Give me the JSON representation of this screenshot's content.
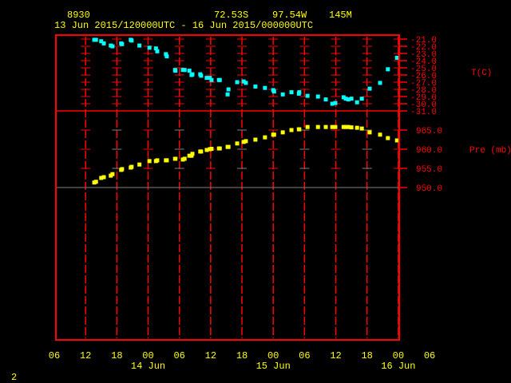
{
  "header": {
    "station_id": "8930",
    "latitude": "72.53S",
    "longitude": "97.54W",
    "elevation": "145M",
    "period": "13 Jun 2015/120000UTC - 16 Jun 2015/000000UTC"
  },
  "footer": {
    "page_number": "2"
  },
  "colors": {
    "frame": "#ff0000",
    "temperature": "#00ffff",
    "pressure": "#ffff00",
    "text": "#ffff00",
    "axis_text": "#ff0000",
    "grid_minor": "#808080"
  },
  "chart_data": [
    {
      "type": "scatter",
      "ylabel": "T(C)",
      "ylim": [
        -31.0,
        -21.0
      ],
      "yticks": [
        "-21.0",
        "-22.0",
        "-23.0",
        "-24.0",
        "-25.0",
        "-26.0",
        "-27.0",
        "-28.0",
        "-29.0",
        "-30.0",
        "-31.0"
      ],
      "x": [
        "2015-06-13T13:40",
        "2015-06-13T14:00",
        "2015-06-13T15:00",
        "2015-06-13T15:30",
        "2015-06-13T16:50",
        "2015-06-13T17:10",
        "2015-06-13T18:50",
        "2015-06-13T19:00",
        "2015-06-13T20:40",
        "2015-06-13T20:50",
        "2015-06-13T22:20",
        "2015-06-14T00:15",
        "2015-06-14T01:30",
        "2015-06-14T01:45",
        "2015-06-14T03:25",
        "2015-06-14T03:35",
        "2015-06-14T05:10",
        "2015-06-14T05:15",
        "2015-06-14T06:40",
        "2015-06-14T07:00",
        "2015-06-14T07:55",
        "2015-06-14T08:20",
        "2015-06-14T08:30",
        "2015-06-14T10:00",
        "2015-06-14T10:10",
        "2015-06-14T11:15",
        "2015-06-14T11:50",
        "2015-06-14T12:10",
        "2015-06-14T13:35",
        "2015-06-14T13:45",
        "2015-06-14T15:15",
        "2015-06-14T15:25",
        "2015-06-14T17:05",
        "2015-06-14T18:20",
        "2015-06-14T18:45",
        "2015-06-14T20:35",
        "2015-06-14T22:25",
        "2015-06-15T00:00",
        "2015-06-15T00:10",
        "2015-06-15T01:50",
        "2015-06-15T03:30",
        "2015-06-15T04:55",
        "2015-06-15T05:00",
        "2015-06-15T06:35",
        "2015-06-15T08:35",
        "2015-06-15T10:05",
        "2015-06-15T11:20",
        "2015-06-15T11:55",
        "2015-06-15T13:30",
        "2015-06-15T13:55",
        "2015-06-15T14:25",
        "2015-06-15T15:00",
        "2015-06-15T16:05",
        "2015-06-15T17:00",
        "2015-06-15T18:30",
        "2015-06-15T20:30",
        "2015-06-15T22:00",
        "2015-06-15T23:45"
      ],
      "values": [
        -21.1,
        -21.1,
        -21.3,
        -21.6,
        -21.9,
        -22.0,
        -21.6,
        -21.7,
        -21.1,
        -21.2,
        -21.9,
        -22.2,
        -22.3,
        -22.7,
        -23.1,
        -23.4,
        -25.3,
        -25.4,
        -25.3,
        -25.3,
        -25.4,
        -26.0,
        -25.9,
        -25.9,
        -26.1,
        -26.4,
        -26.4,
        -26.7,
        -26.7,
        -26.7,
        -28.7,
        -28.0,
        -27.0,
        -26.9,
        -27.1,
        -27.6,
        -27.8,
        -28.1,
        -28.3,
        -28.7,
        -28.4,
        -28.6,
        -28.4,
        -28.9,
        -29.0,
        -29.4,
        -30.0,
        -29.9,
        -29.1,
        -29.3,
        -29.4,
        -29.3,
        -29.8,
        -29.3,
        -27.9,
        -27.1,
        -25.2,
        -23.6
      ]
    },
    {
      "type": "scatter",
      "ylabel": "Pre (mb)",
      "ylim": [
        950.0,
        965.0
      ],
      "yticks": [
        "965.0",
        "960.0",
        "955.0",
        "950.0"
      ],
      "values": [
        951.3,
        951.5,
        952.5,
        952.7,
        953.1,
        953.5,
        954.6,
        954.8,
        955.2,
        955.4,
        956.0,
        956.9,
        956.9,
        957.1,
        957.1,
        957.1,
        957.5,
        957.5,
        957.3,
        957.5,
        958.3,
        958.3,
        958.8,
        959.4,
        959.4,
        959.8,
        960.0,
        960.1,
        960.2,
        960.2,
        960.6,
        960.6,
        961.5,
        961.9,
        962.1,
        962.5,
        963.1,
        963.8,
        963.8,
        964.4,
        965.0,
        965.2,
        965.2,
        965.8,
        965.8,
        965.8,
        965.8,
        965.8,
        965.8,
        965.8,
        965.8,
        965.7,
        965.6,
        965.4,
        964.4,
        963.8,
        962.9,
        962.3
      ]
    }
  ],
  "x_axis": {
    "xlim": [
      "2015-06-13T06:00",
      "2015-06-16T06:00"
    ],
    "tick_labels": [
      "06",
      "12",
      "18",
      "00",
      "06",
      "12",
      "18",
      "00",
      "06",
      "12",
      "18",
      "00",
      "06"
    ],
    "date_labels": [
      "14 Jun",
      "15 Jun",
      "16 Jun"
    ]
  }
}
